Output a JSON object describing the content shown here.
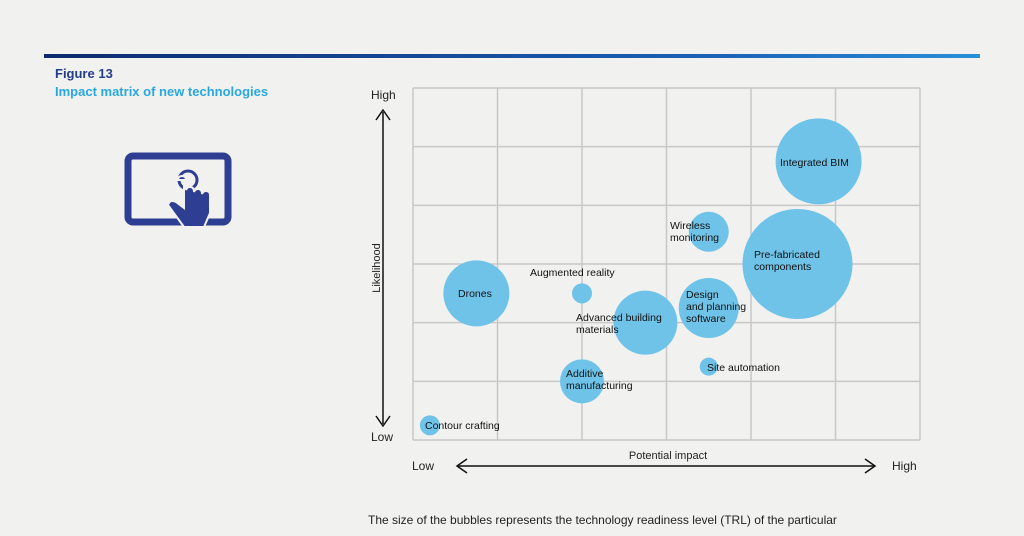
{
  "figure": {
    "number": "Figure 13",
    "title": "Impact matrix of new technologies",
    "icon": "touchscreen-tablet-hand-icon"
  },
  "caption": "The size of the bubbles represents the technology readiness level (TRL) of the particular",
  "colors": {
    "bubble": "#6fc3e8",
    "title_blue": "#29a8df",
    "dark_blue": "#243c8c",
    "grid": "#c8c8c8"
  },
  "chart_data": {
    "type": "scatter",
    "subtype": "bubble",
    "xlabel": "Potential impact",
    "ylabel": "Likelihood",
    "x_low": "Low",
    "x_high": "High",
    "y_low": "Low",
    "y_high": "High",
    "xlim": [
      0,
      6
    ],
    "ylim": [
      0,
      6
    ],
    "grid": true,
    "points": [
      {
        "label": "Integrated BIM",
        "x": 4.8,
        "y": 4.75,
        "size": 43
      },
      {
        "label": "Pre-fabricated components",
        "x": 4.55,
        "y": 3.0,
        "size": 55
      },
      {
        "label": "Wireless monitoring",
        "x": 3.5,
        "y": 3.55,
        "size": 20
      },
      {
        "label": "Design and planning software",
        "x": 3.5,
        "y": 2.25,
        "size": 30
      },
      {
        "label": "Advanced building materials",
        "x": 2.75,
        "y": 2.0,
        "size": 32
      },
      {
        "label": "Augmented reality",
        "x": 2.0,
        "y": 2.5,
        "size": 10
      },
      {
        "label": "Drones",
        "x": 0.75,
        "y": 2.5,
        "size": 33
      },
      {
        "label": "Site automation",
        "x": 3.5,
        "y": 1.25,
        "size": 9
      },
      {
        "label": "Additive manufacturing",
        "x": 2.0,
        "y": 1.0,
        "size": 22
      },
      {
        "label": "Contour crafting",
        "x": 0.2,
        "y": 0.25,
        "size": 10
      }
    ]
  }
}
